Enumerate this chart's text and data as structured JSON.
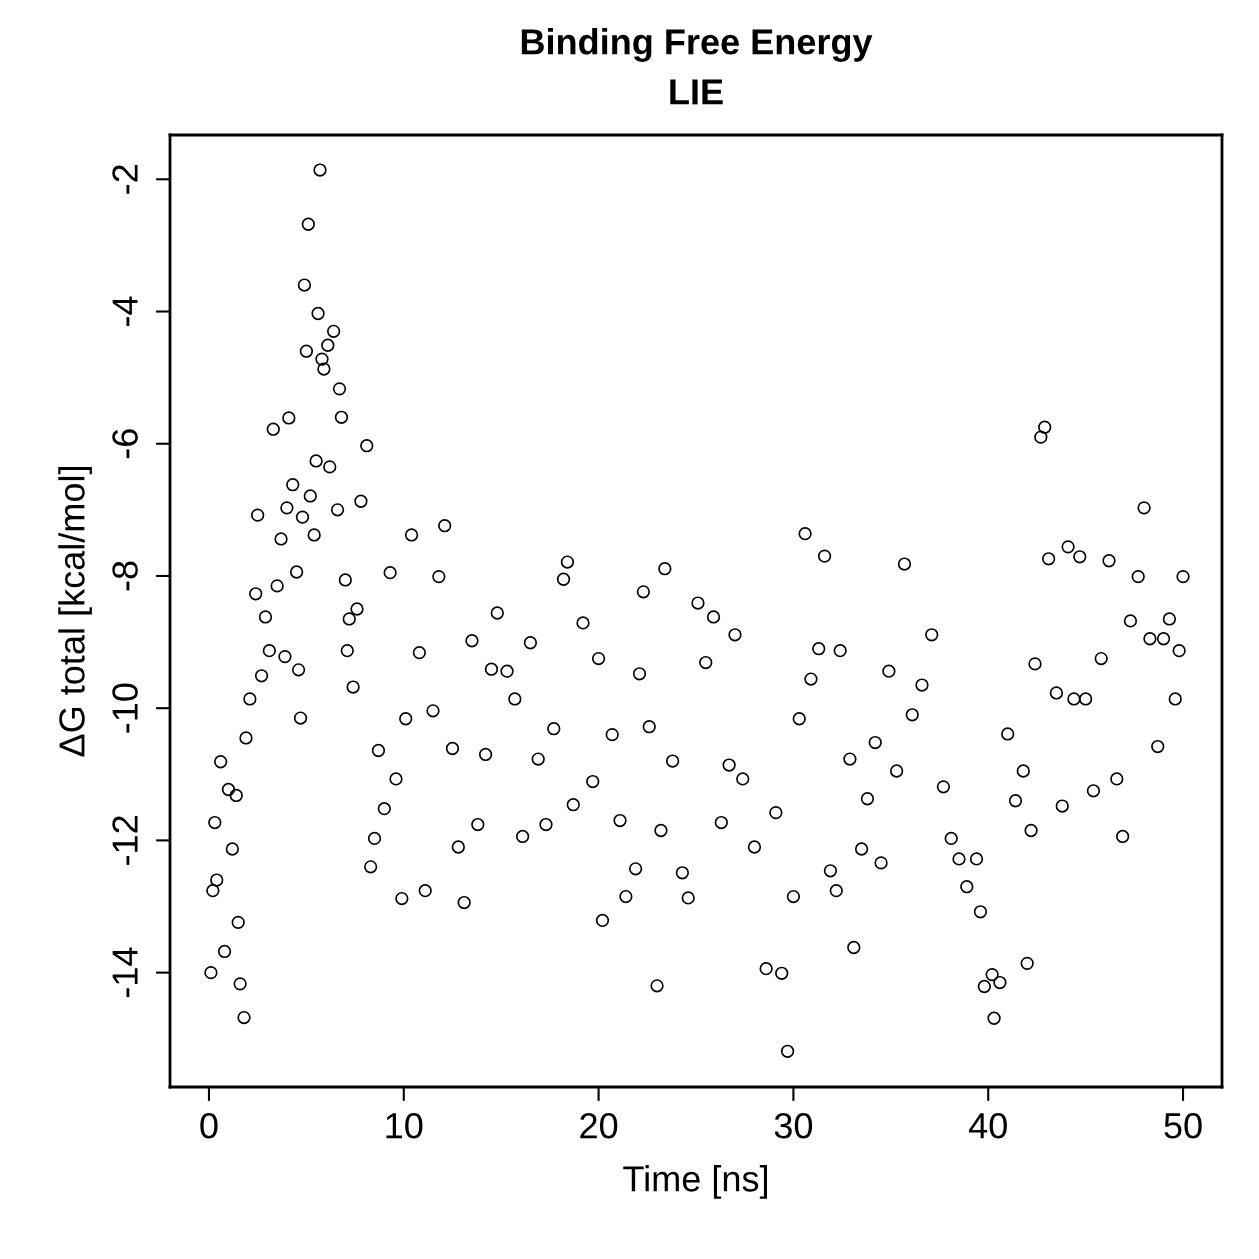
{
  "chart_data": {
    "type": "scatter",
    "title": "Binding Free Energy",
    "subtitle": "LIE",
    "xlabel": "Time [ns]",
    "ylabel": "ΔG total [kcal/mol]",
    "xlim": [
      -2,
      52
    ],
    "ylim": [
      -15.73,
      -1.33
    ],
    "xticks": [
      0,
      10,
      20,
      30,
      40,
      50
    ],
    "yticks": [
      -14,
      -12,
      -10,
      -8,
      -6,
      -4,
      -2
    ],
    "grid": false,
    "legend": false,
    "marker": "circle",
    "series": [
      {
        "color": "#000000",
        "x": [
          0.1,
          0.2,
          0.3,
          0.4,
          0.6,
          0.8,
          1.0,
          1.2,
          1.4,
          1.5,
          1.6,
          1.8,
          1.9,
          2.1,
          2.4,
          2.5,
          2.7,
          2.9,
          3.1,
          3.3,
          3.5,
          3.7,
          3.9,
          4.0,
          4.1,
          4.3,
          4.5,
          4.6,
          4.7,
          4.8,
          4.9,
          5.0,
          5.1,
          5.2,
          5.4,
          5.5,
          5.6,
          5.7,
          5.8,
          5.9,
          6.1,
          6.2,
          6.4,
          6.6,
          6.7,
          6.8,
          7.0,
          7.1,
          7.2,
          7.4,
          7.6,
          7.8,
          8.1,
          8.3,
          8.5,
          8.7,
          9.0,
          9.3,
          9.6,
          9.9,
          10.1,
          10.4,
          10.8,
          11.1,
          11.5,
          11.8,
          12.1,
          12.5,
          12.8,
          13.1,
          13.5,
          13.8,
          14.2,
          14.5,
          14.8,
          15.3,
          15.7,
          16.1,
          16.5,
          16.9,
          17.3,
          17.7,
          18.2,
          18.4,
          18.7,
          19.2,
          19.7,
          20.0,
          20.2,
          20.7,
          21.1,
          21.4,
          21.9,
          22.1,
          22.3,
          22.6,
          23.0,
          23.2,
          23.4,
          23.8,
          24.3,
          24.6,
          25.1,
          25.5,
          25.9,
          26.3,
          26.7,
          27.0,
          27.4,
          28.0,
          28.6,
          29.1,
          29.4,
          29.7,
          30.0,
          30.3,
          30.6,
          30.9,
          31.3,
          31.6,
          31.9,
          32.2,
          32.4,
          32.9,
          33.1,
          33.5,
          33.8,
          34.2,
          34.5,
          34.9,
          35.3,
          35.7,
          36.1,
          36.6,
          37.1,
          37.7,
          38.1,
          38.5,
          38.9,
          39.4,
          39.6,
          39.8,
          40.2,
          40.3,
          40.6,
          41.0,
          41.4,
          41.8,
          42.0,
          42.2,
          42.4,
          42.7,
          42.9,
          43.1,
          43.5,
          43.8,
          44.1,
          44.4,
          44.7,
          45.0,
          45.4,
          45.8,
          46.2,
          46.6,
          46.9,
          47.3,
          47.7,
          48.0,
          48.3,
          48.7,
          49.0,
          49.3,
          49.6,
          49.8,
          50.0
        ],
        "values": [
          -14.0,
          -12.76,
          -11.73,
          -12.6,
          -10.81,
          -13.68,
          -11.23,
          -12.13,
          -11.32,
          -13.24,
          -14.17,
          -14.68,
          -10.45,
          -9.86,
          -8.27,
          -7.08,
          -9.51,
          -8.62,
          -9.13,
          -5.78,
          -8.15,
          -7.44,
          -9.22,
          -6.97,
          -5.61,
          -6.62,
          -7.94,
          -9.42,
          -10.15,
          -7.11,
          -3.6,
          -4.6,
          -2.68,
          -6.79,
          -7.38,
          -6.26,
          -4.03,
          -1.86,
          -4.72,
          -4.87,
          -4.51,
          -6.35,
          -4.3,
          -7.0,
          -5.17,
          -5.6,
          -8.06,
          -9.13,
          -8.65,
          -9.68,
          -8.5,
          -6.87,
          -6.03,
          -12.4,
          -11.97,
          -10.64,
          -11.52,
          -7.95,
          -11.07,
          -12.88,
          -10.16,
          -7.38,
          -9.16,
          -12.76,
          -10.04,
          -8.01,
          -7.24,
          -10.61,
          -12.1,
          -12.94,
          -8.98,
          -11.76,
          -10.7,
          -9.41,
          -8.56,
          -9.44,
          -9.86,
          -11.94,
          -9.01,
          -10.77,
          -11.76,
          -10.31,
          -8.05,
          -7.79,
          -11.46,
          -8.71,
          -11.11,
          -9.25,
          -13.21,
          -10.4,
          -11.7,
          -12.85,
          -12.43,
          -9.48,
          -8.24,
          -10.28,
          -14.2,
          -11.85,
          -7.89,
          -10.8,
          -12.49,
          -12.87,
          -8.41,
          -9.31,
          -8.62,
          -11.73,
          -10.86,
          -8.89,
          -11.07,
          -12.1,
          -13.94,
          -11.58,
          -14.01,
          -15.19,
          -12.85,
          -10.16,
          -7.36,
          -9.56,
          -9.1,
          -7.7,
          -12.46,
          -12.76,
          -9.13,
          -10.77,
          -13.62,
          -12.13,
          -11.37,
          -10.52,
          -12.34,
          -9.44,
          -10.95,
          -7.82,
          -10.1,
          -9.65,
          -8.89,
          -11.19,
          -11.97,
          -12.28,
          -12.7,
          -12.28,
          -13.08,
          -14.21,
          -14.03,
          -14.69,
          -14.15,
          -10.39,
          -11.4,
          -10.95,
          -13.86,
          -11.85,
          -9.33,
          -5.9,
          -5.75,
          -7.74,
          -9.77,
          -11.48,
          -7.56,
          -9.86,
          -7.71,
          -9.86,
          -11.25,
          -9.25,
          -7.77,
          -11.07,
          -11.94,
          -8.68,
          -8.01,
          -6.97,
          -8.95,
          -10.58,
          -8.95,
          -8.65,
          -9.86,
          -9.13,
          -8.01
        ]
      }
    ]
  }
}
